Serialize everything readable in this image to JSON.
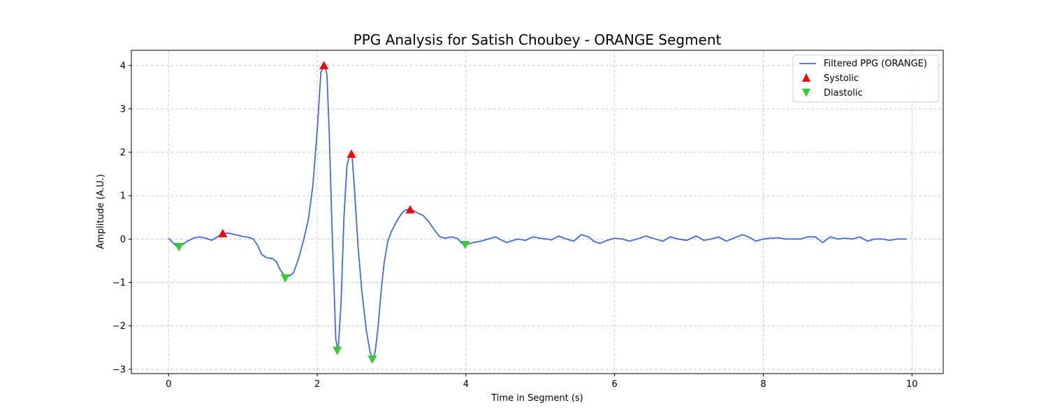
{
  "chart_data": {
    "type": "line",
    "title": "PPG Analysis for Satish Choubey - ORANGE Segment",
    "xlabel": "Time in Segment (s)",
    "ylabel": "Amplitude (A.U.)",
    "xlim": [
      -0.5,
      10.42
    ],
    "ylim": [
      -3.1,
      4.35
    ],
    "xticks": [
      0,
      2,
      4,
      6,
      8,
      10
    ],
    "yticks": [
      -3,
      -2,
      -1,
      0,
      1,
      2,
      3,
      4
    ],
    "grid": true,
    "legend_position": "top-right",
    "colors": {
      "line": "#4169e1",
      "systolic": "#ff0000",
      "diastolic": "#32cd32"
    },
    "series": [
      {
        "name": "Filtered PPG (ORANGE)",
        "kind": "line",
        "x": [
          0.0,
          0.1,
          0.15,
          0.25,
          0.35,
          0.42,
          0.5,
          0.58,
          0.66,
          0.73,
          0.8,
          0.9,
          1.0,
          1.08,
          1.14,
          1.2,
          1.25,
          1.32,
          1.4,
          1.45,
          1.5,
          1.56,
          1.62,
          1.68,
          1.75,
          1.82,
          1.88,
          1.94,
          2.0,
          2.05,
          2.1,
          2.13,
          2.16,
          2.2,
          2.25,
          2.28,
          2.32,
          2.36,
          2.4,
          2.44,
          2.47,
          2.5,
          2.55,
          2.6,
          2.66,
          2.71,
          2.75,
          2.78,
          2.82,
          2.86,
          2.9,
          2.95,
          3.0,
          3.05,
          3.1,
          3.15,
          3.2,
          3.25,
          3.3,
          3.35,
          3.42,
          3.5,
          3.58,
          3.65,
          3.72,
          3.8,
          3.88,
          3.95,
          4.0,
          4.1,
          4.2,
          4.3,
          4.4,
          4.45,
          4.55,
          4.6,
          4.7,
          4.8,
          4.9,
          5.0,
          5.08,
          5.15,
          5.25,
          5.35,
          5.45,
          5.55,
          5.65,
          5.72,
          5.8,
          5.9,
          6.0,
          6.1,
          6.2,
          6.3,
          6.42,
          6.55,
          6.65,
          6.75,
          6.85,
          6.97,
          7.1,
          7.2,
          7.3,
          7.4,
          7.5,
          7.6,
          7.72,
          7.8,
          7.9,
          8.0,
          8.1,
          8.2,
          8.3,
          8.4,
          8.5,
          8.6,
          8.7,
          8.8,
          8.9,
          9.0,
          9.1,
          9.2,
          9.3,
          9.4,
          9.5,
          9.6,
          9.7,
          9.8,
          9.93
        ],
        "y": [
          0.02,
          -0.15,
          -0.18,
          -0.05,
          0.03,
          0.05,
          0.02,
          -0.03,
          0.05,
          0.12,
          0.14,
          0.1,
          0.06,
          0.04,
          0.0,
          -0.15,
          -0.35,
          -0.43,
          -0.45,
          -0.52,
          -0.7,
          -0.85,
          -0.85,
          -0.78,
          -0.45,
          0.0,
          0.45,
          1.2,
          2.5,
          3.85,
          4.0,
          3.8,
          2.5,
          0.2,
          -2.3,
          -2.6,
          -1.5,
          0.5,
          1.7,
          1.95,
          1.9,
          1.2,
          -0.2,
          -1.2,
          -2.1,
          -2.6,
          -2.78,
          -2.6,
          -2.0,
          -1.2,
          -0.55,
          -0.05,
          0.18,
          0.35,
          0.5,
          0.62,
          0.68,
          0.68,
          0.65,
          0.6,
          0.55,
          0.4,
          0.2,
          0.05,
          0.02,
          0.05,
          0.02,
          -0.1,
          -0.13,
          -0.08,
          -0.05,
          0.0,
          0.05,
          0.0,
          -0.08,
          -0.05,
          0.0,
          -0.03,
          0.05,
          0.02,
          0.0,
          -0.02,
          0.07,
          0.0,
          -0.05,
          0.1,
          0.05,
          -0.05,
          -0.1,
          -0.03,
          0.02,
          0.0,
          -0.05,
          0.0,
          0.07,
          0.0,
          -0.05,
          0.05,
          0.0,
          -0.03,
          0.07,
          -0.03,
          0.0,
          0.05,
          -0.05,
          0.02,
          0.1,
          0.05,
          -0.05,
          0.0,
          0.02,
          0.03,
          0.0,
          0.0,
          0.0,
          0.05,
          0.05,
          -0.08,
          0.05,
          0.0,
          0.02,
          0.0,
          0.05,
          -0.05,
          0.0,
          0.0,
          -0.03,
          0.0,
          0.0
        ]
      },
      {
        "name": "Systolic",
        "kind": "marker-up",
        "x": [
          0.73,
          2.09,
          2.46,
          3.25
        ],
        "y": [
          0.13,
          4.0,
          1.96,
          0.68
        ]
      },
      {
        "name": "Diastolic",
        "kind": "marker-down",
        "x": [
          0.14,
          1.57,
          2.27,
          2.74,
          3.99
        ],
        "y": [
          -0.18,
          -0.9,
          -2.57,
          -2.77,
          -0.13
        ]
      }
    ]
  }
}
